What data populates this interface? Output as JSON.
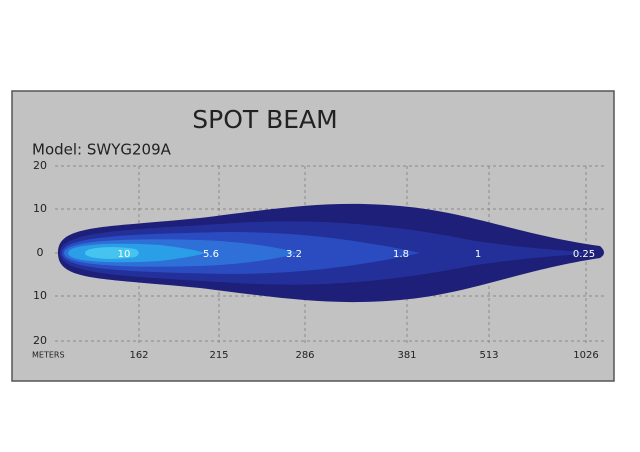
{
  "title": "SPOT BEAM",
  "model": "Model: SWYG209A",
  "y_axis": {
    "labels": [
      "20",
      "10",
      "0",
      "10",
      "20"
    ]
  },
  "x_axis": {
    "unit": "METERS",
    "labels": [
      "162",
      "215",
      "286",
      "381",
      "513",
      "1026"
    ]
  },
  "lux_labels": [
    "10",
    "5.6",
    "3.2",
    "1.8",
    "1",
    "0.25"
  ]
}
